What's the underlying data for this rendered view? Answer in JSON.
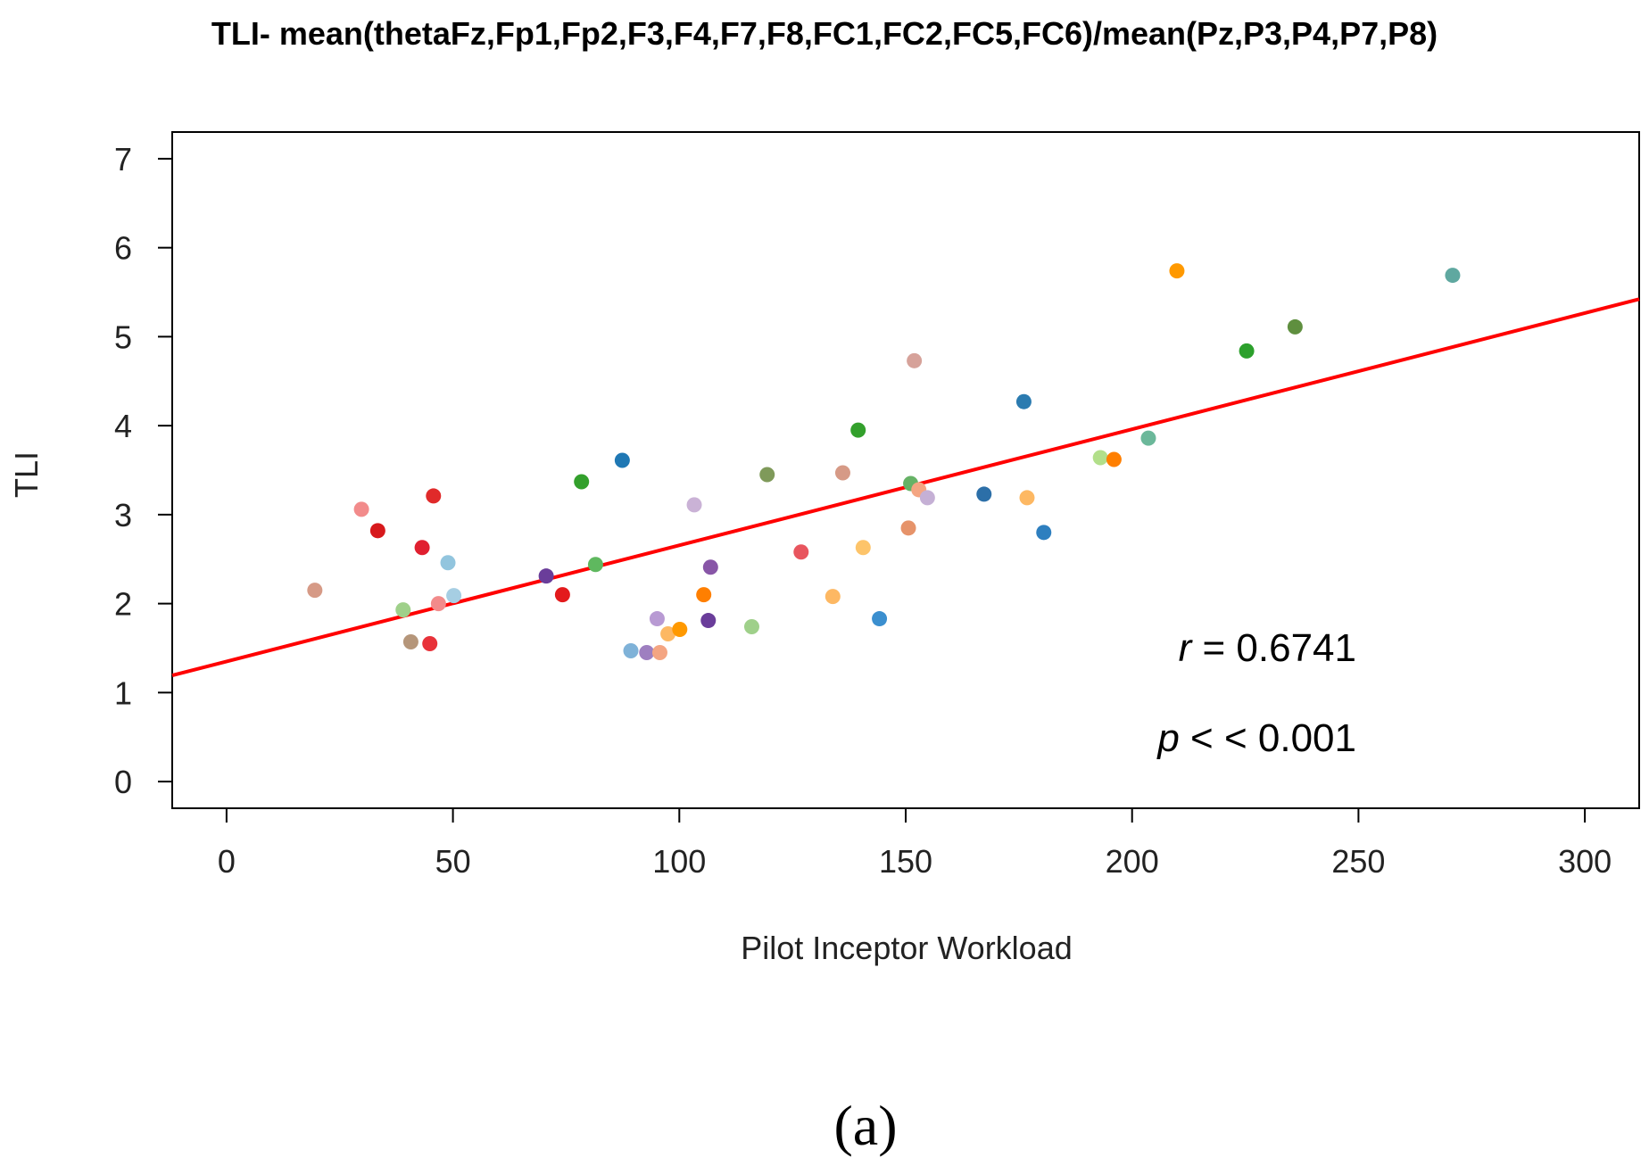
{
  "chart_data": {
    "type": "scatter",
    "title": "TLI- mean(thetaFz,Fp1,Fp2,F3,F4,F7,F8,FC1,FC2,FC5,FC6)/mean(Pz,P3,P4,P7,P8)",
    "xlabel": "Pilot Inceptor Workload",
    "ylabel": "TLI",
    "xlim": [
      -12,
      312
    ],
    "ylim": [
      -0.3,
      7.3
    ],
    "x_ticks": [
      0,
      50,
      100,
      150,
      200,
      250,
      300
    ],
    "y_ticks": [
      0,
      1,
      2,
      3,
      4,
      5,
      6,
      7
    ],
    "grid": false,
    "legend": "none",
    "points": [
      {
        "x": 19.5,
        "y": 2.15,
        "color": "#d69a86"
      },
      {
        "x": 29.8,
        "y": 3.06,
        "color": "#f28b8b"
      },
      {
        "x": 33.4,
        "y": 2.82,
        "color": "#d7191c"
      },
      {
        "x": 39.0,
        "y": 1.93,
        "color": "#9fd08a"
      },
      {
        "x": 40.7,
        "y": 1.57,
        "color": "#b5967a"
      },
      {
        "x": 43.2,
        "y": 2.63,
        "color": "#e02030"
      },
      {
        "x": 44.9,
        "y": 1.55,
        "color": "#e8323a"
      },
      {
        "x": 45.7,
        "y": 3.21,
        "color": "#e02a2a"
      },
      {
        "x": 46.8,
        "y": 2.0,
        "color": "#f28b8b"
      },
      {
        "x": 48.9,
        "y": 2.46,
        "color": "#92c5de"
      },
      {
        "x": 50.2,
        "y": 2.09,
        "color": "#a6cee3"
      },
      {
        "x": 70.6,
        "y": 2.31,
        "color": "#6a3d9a"
      },
      {
        "x": 74.2,
        "y": 2.1,
        "color": "#e31a1c"
      },
      {
        "x": 78.4,
        "y": 3.37,
        "color": "#33a02c"
      },
      {
        "x": 81.5,
        "y": 2.44,
        "color": "#5fb85f"
      },
      {
        "x": 87.4,
        "y": 3.61,
        "color": "#1f78b4"
      },
      {
        "x": 89.3,
        "y": 1.47,
        "color": "#7fb2d8"
      },
      {
        "x": 92.8,
        "y": 1.45,
        "color": "#9e7fc0"
      },
      {
        "x": 95.1,
        "y": 1.83,
        "color": "#b89ad3"
      },
      {
        "x": 95.7,
        "y": 1.45,
        "color": "#f4a582"
      },
      {
        "x": 97.5,
        "y": 1.66,
        "color": "#fdb863"
      },
      {
        "x": 100.1,
        "y": 1.71,
        "color": "#ff9900"
      },
      {
        "x": 103.3,
        "y": 3.11,
        "color": "#cab2d6"
      },
      {
        "x": 105.4,
        "y": 2.1,
        "color": "#ff7f00"
      },
      {
        "x": 106.4,
        "y": 1.81,
        "color": "#6a3d9a"
      },
      {
        "x": 106.9,
        "y": 2.41,
        "color": "#8856a7"
      },
      {
        "x": 116.0,
        "y": 1.74,
        "color": "#9fd08a"
      },
      {
        "x": 119.4,
        "y": 3.45,
        "color": "#7f9a5a"
      },
      {
        "x": 126.9,
        "y": 2.58,
        "color": "#e8555e"
      },
      {
        "x": 133.9,
        "y": 2.08,
        "color": "#fdb863"
      },
      {
        "x": 136.1,
        "y": 3.47,
        "color": "#d69a86"
      },
      {
        "x": 139.5,
        "y": 3.95,
        "color": "#33a02c"
      },
      {
        "x": 140.6,
        "y": 2.63,
        "color": "#fdc46a"
      },
      {
        "x": 144.2,
        "y": 1.83,
        "color": "#3b8fcf"
      },
      {
        "x": 150.6,
        "y": 2.85,
        "color": "#e6936a"
      },
      {
        "x": 151.1,
        "y": 3.35,
        "color": "#66b266"
      },
      {
        "x": 151.9,
        "y": 4.73,
        "color": "#d6a29a"
      },
      {
        "x": 152.9,
        "y": 3.28,
        "color": "#f4a582"
      },
      {
        "x": 154.8,
        "y": 3.19,
        "color": "#c5b0d5"
      },
      {
        "x": 167.3,
        "y": 3.23,
        "color": "#2c6fa8"
      },
      {
        "x": 176.1,
        "y": 4.27,
        "color": "#2b7bb0"
      },
      {
        "x": 176.8,
        "y": 3.19,
        "color": "#fdb863"
      },
      {
        "x": 180.5,
        "y": 2.8,
        "color": "#2e7fbf"
      },
      {
        "x": 193.0,
        "y": 3.64,
        "color": "#b2df8a"
      },
      {
        "x": 196.0,
        "y": 3.62,
        "color": "#ff7f00"
      },
      {
        "x": 203.6,
        "y": 3.86,
        "color": "#6bb89a"
      },
      {
        "x": 209.9,
        "y": 5.74,
        "color": "#ff9900"
      },
      {
        "x": 225.3,
        "y": 4.84,
        "color": "#2ca02c"
      },
      {
        "x": 236.0,
        "y": 5.11,
        "color": "#5f8f3f"
      },
      {
        "x": 270.8,
        "y": 5.69,
        "color": "#5fa8a0"
      }
    ],
    "fit_line": {
      "slope": 0.01305,
      "intercept": 1.35,
      "color": "#ff0000"
    },
    "annotations": {
      "r_symbol": "r",
      "r_text": " = 0.6741",
      "p_symbol": "p",
      "p_text": " < < 0.001"
    }
  },
  "caption": "(a)"
}
